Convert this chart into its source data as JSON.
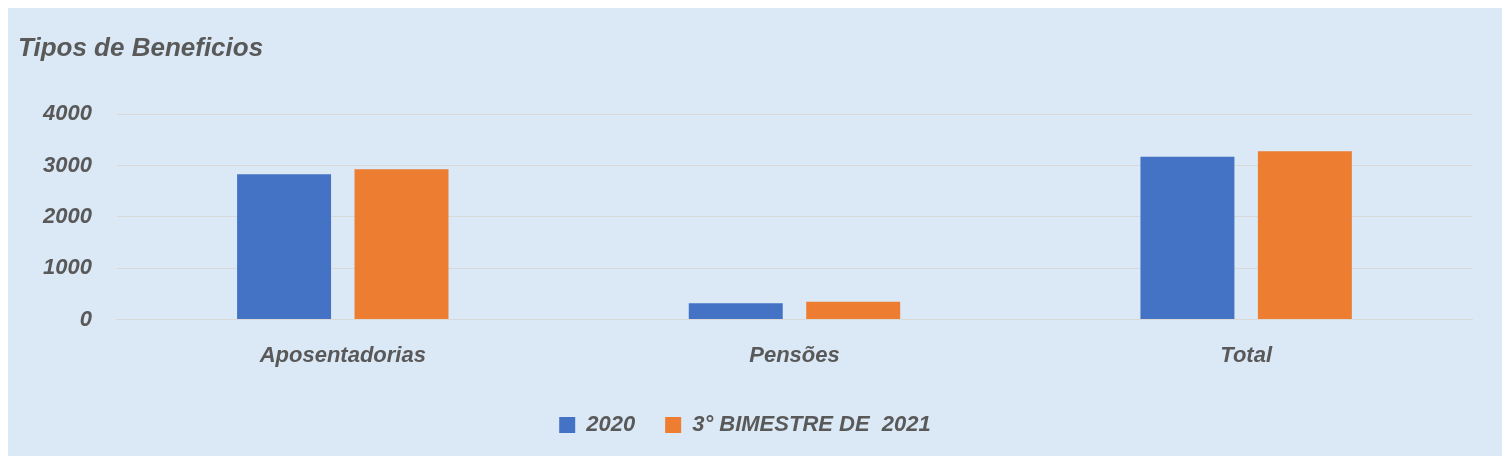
{
  "chart_data": {
    "type": "bar",
    "title": "Tipos de Beneficios",
    "categories": [
      "Aposentadorias",
      "Pensões",
      "Total"
    ],
    "series": [
      {
        "name": "2020",
        "color": "#4472c4",
        "values": [
          2830,
          320,
          3170
        ]
      },
      {
        "name": "3° BIMESTRE DE  2021",
        "color": "#ed7d31",
        "values": [
          2930,
          350,
          3280
        ]
      }
    ],
    "ylim": [
      0,
      4000
    ],
    "yticks": [
      0,
      1000,
      2000,
      3000,
      4000
    ],
    "grid": "y",
    "legend": "bottom"
  }
}
